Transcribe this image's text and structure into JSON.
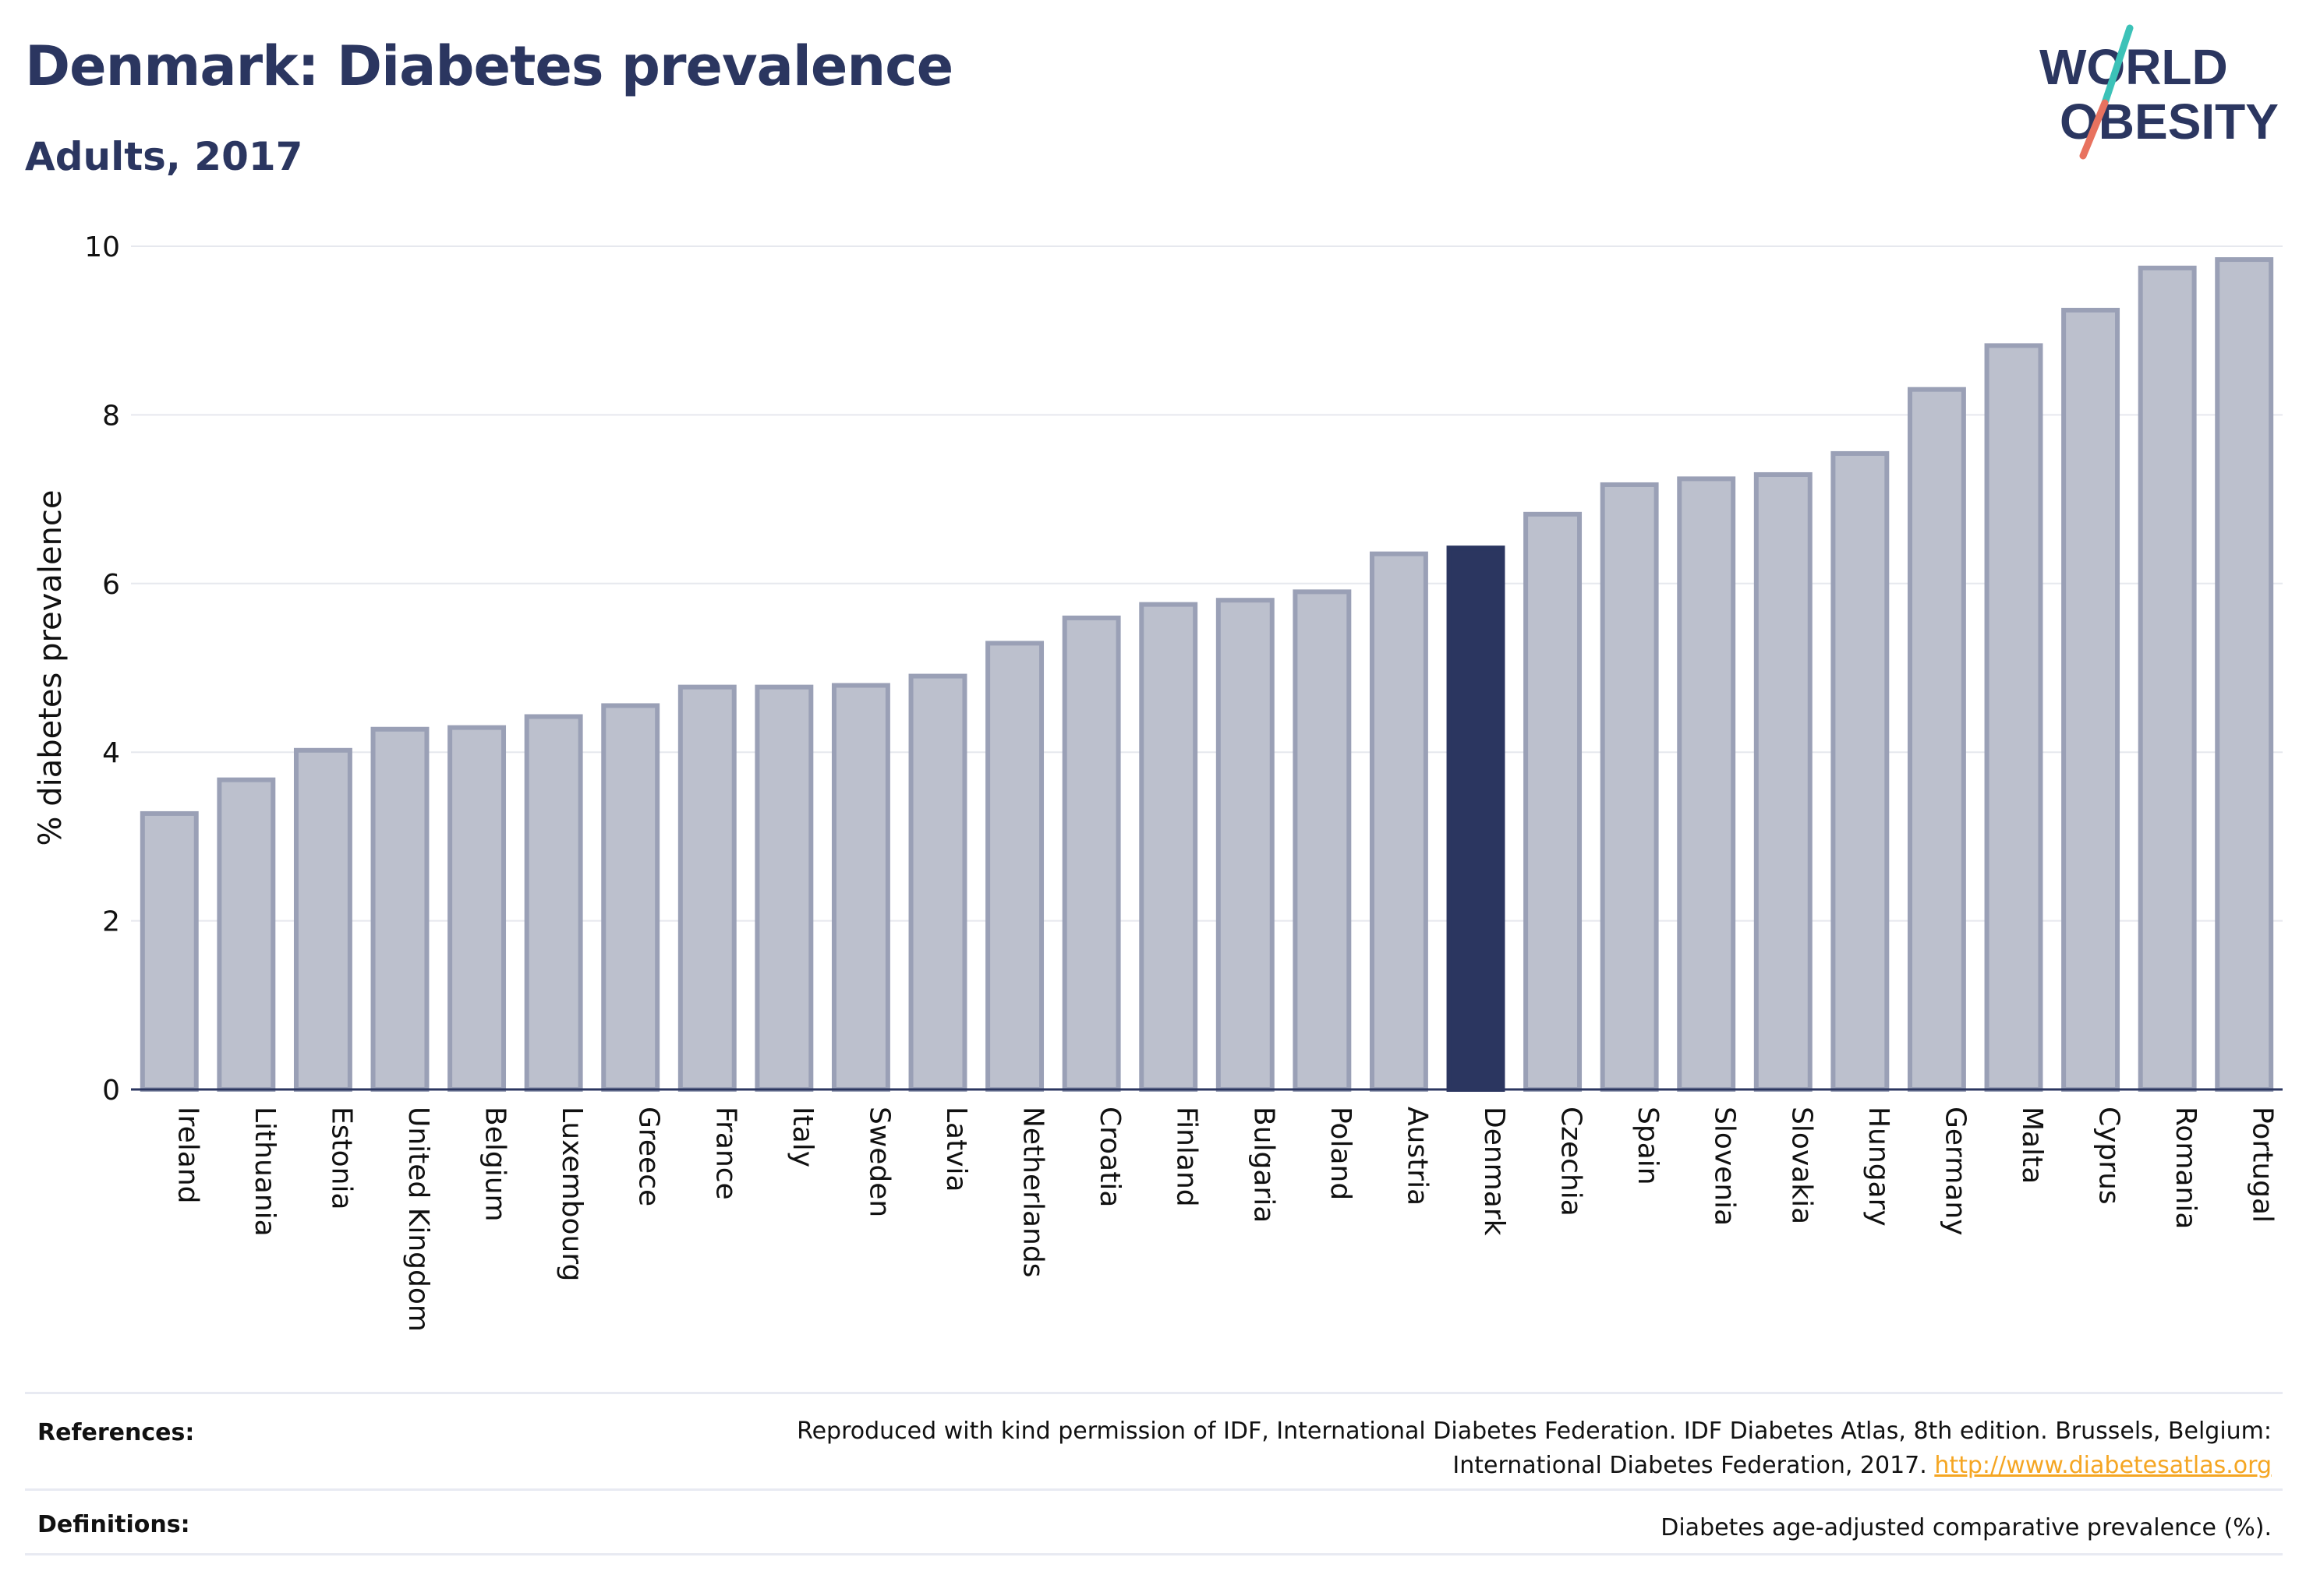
{
  "header": {
    "title": "Denmark: Diabetes prevalence",
    "subtitle": "Adults, 2017"
  },
  "logo": {
    "line1": "WORLD",
    "line2": "OBESITY",
    "name": "world-obesity-logo"
  },
  "colors": {
    "bar": "#bcc0cd",
    "bar_border": "#9aa0b6",
    "highlight": "#2b3660",
    "axis": "#2b3660",
    "grid": "#e6e8ee",
    "link": "#f5a623",
    "logo_teal": "#3cc2b8",
    "logo_coral": "#e8725f"
  },
  "chart_data": {
    "type": "bar",
    "ylabel": "% diabetes prevalence",
    "xlabel": "",
    "ylim": [
      0,
      10
    ],
    "yticks": [
      0,
      2,
      4,
      6,
      8,
      10
    ],
    "grid": true,
    "highlight": "Denmark",
    "categories": [
      "Ireland",
      "Lithuania",
      "Estonia",
      "United Kingdom",
      "Belgium",
      "Luxembourg",
      "Greece",
      "France",
      "Italy",
      "Sweden",
      "Latvia",
      "Netherlands",
      "Croatia",
      "Finland",
      "Bulgaria",
      "Poland",
      "Austria",
      "Denmark",
      "Czechia",
      "Spain",
      "Slovenia",
      "Slovakia",
      "Hungary",
      "Germany",
      "Malta",
      "Cyprus",
      "Romania",
      "Portugal"
    ],
    "values": [
      3.3,
      3.7,
      4.05,
      4.3,
      4.32,
      4.45,
      4.58,
      4.8,
      4.8,
      4.82,
      4.93,
      5.32,
      5.62,
      5.78,
      5.83,
      5.93,
      6.38,
      6.45,
      6.85,
      7.2,
      7.27,
      7.32,
      7.57,
      8.33,
      8.85,
      9.27,
      9.77,
      9.87
    ]
  },
  "footer": {
    "references_label": "References:",
    "references_text_1": "Reproduced with kind permission of IDF, International Diabetes Federation. IDF Diabetes Atlas, 8th edition. Brussels, Belgium:",
    "references_text_2": "International Diabetes Federation, 2017.",
    "references_link": "http://www.diabetesatlas.org",
    "definitions_label": "Definitions:",
    "definitions_text": "Diabetes age-adjusted comparative prevalence (%)."
  }
}
